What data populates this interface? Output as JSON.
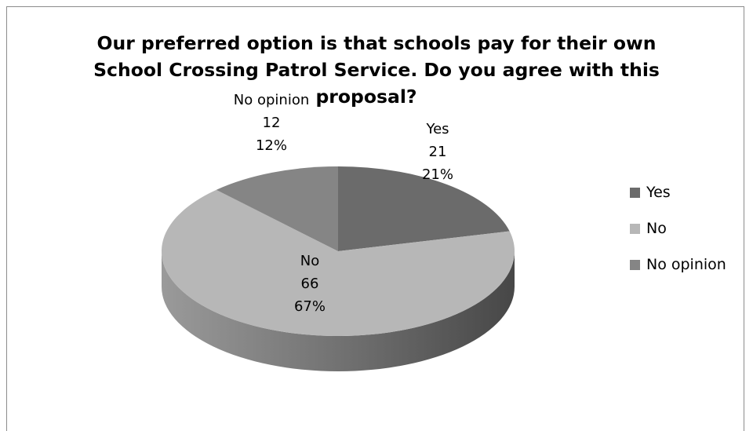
{
  "chart_data": {
    "type": "pie",
    "title_lines": [
      "Our preferred option is that schools pay for their own",
      "School Crossing Patrol Service. Do you agree with this",
      "proposal?"
    ],
    "categories": [
      "Yes",
      "No",
      "No opinion"
    ],
    "values": [
      21,
      66,
      12
    ],
    "percent_labels": [
      "21%",
      "67%",
      "12%"
    ],
    "value_labels": [
      "21",
      "66",
      "12"
    ],
    "legend_labels": [
      "Yes",
      "No",
      "No opinion"
    ],
    "legend_position": "right",
    "colors": [
      "#6b6b6b",
      "#b7b7b7",
      "#858585"
    ],
    "style": "3d-pie"
  }
}
